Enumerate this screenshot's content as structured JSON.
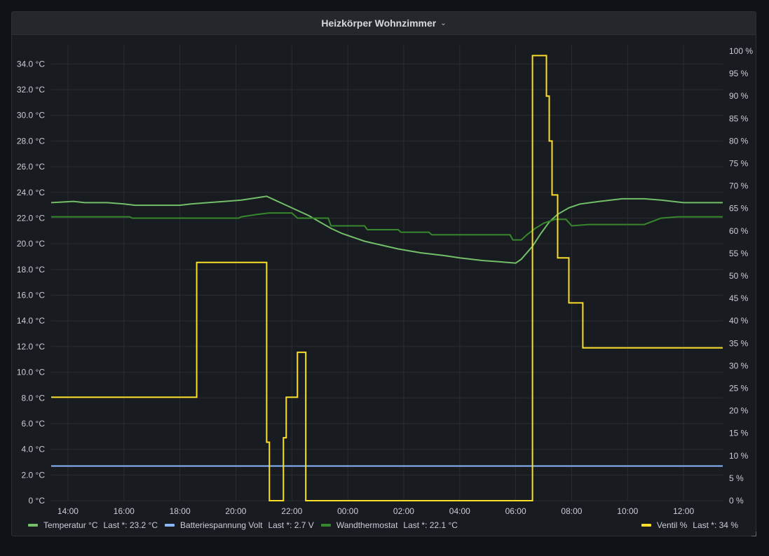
{
  "panel": {
    "title": "Heizkörper Wohnzimmer"
  },
  "chart_data": {
    "type": "line",
    "x_tick_labels": [
      "14:00",
      "16:00",
      "18:00",
      "20:00",
      "22:00",
      "00:00",
      "02:00",
      "04:00",
      "06:00",
      "08:00",
      "10:00",
      "12:00"
    ],
    "x_range_hours": [
      13.4,
      37.4
    ],
    "left_axis": {
      "unit": "°C",
      "ylim": [
        0,
        35
      ],
      "ticks": [
        "0 °C",
        "2.0 °C",
        "4.0 °C",
        "6.0 °C",
        "8.0 °C",
        "10.0 °C",
        "12.0 °C",
        "14.0 °C",
        "16.0 °C",
        "18.0 °C",
        "20.0 °C",
        "22.0 °C",
        "24.0 °C",
        "26.0 °C",
        "28.0 °C",
        "30.0 °C",
        "32.0 °C",
        "34.0 °C"
      ]
    },
    "right_axis": {
      "unit": "%",
      "ylim": [
        0,
        100
      ],
      "ticks": [
        "0 %",
        "5 %",
        "10 %",
        "15 %",
        "20 %",
        "25 %",
        "30 %",
        "35 %",
        "40 %",
        "45 %",
        "50 %",
        "55 %",
        "60 %",
        "65 %",
        "70 %",
        "75 %",
        "80 %",
        "85 %",
        "90 %",
        "95 %",
        "100 %"
      ]
    },
    "grid": true,
    "series": [
      {
        "name": "Temperatur °C",
        "axis": "left",
        "color": "#73bf69",
        "legend_stat": "Last *: 23.2 °C",
        "points": [
          [
            13.4,
            23.2
          ],
          [
            14.2,
            23.3
          ],
          [
            14.6,
            23.2
          ],
          [
            15.4,
            23.2
          ],
          [
            16.0,
            23.1
          ],
          [
            16.4,
            23.0
          ],
          [
            18.0,
            23.0
          ],
          [
            18.4,
            23.1
          ],
          [
            19.0,
            23.2
          ],
          [
            19.6,
            23.3
          ],
          [
            20.2,
            23.4
          ],
          [
            20.8,
            23.6
          ],
          [
            21.1,
            23.7
          ],
          [
            21.4,
            23.4
          ],
          [
            21.8,
            23.0
          ],
          [
            22.2,
            22.6
          ],
          [
            22.6,
            22.2
          ],
          [
            23.0,
            21.7
          ],
          [
            23.4,
            21.2
          ],
          [
            23.8,
            20.8
          ],
          [
            24.2,
            20.5
          ],
          [
            24.6,
            20.2
          ],
          [
            25.2,
            19.9
          ],
          [
            25.8,
            19.6
          ],
          [
            26.6,
            19.3
          ],
          [
            27.4,
            19.1
          ],
          [
            28.0,
            18.9
          ],
          [
            28.8,
            18.7
          ],
          [
            29.4,
            18.6
          ],
          [
            30.0,
            18.5
          ],
          [
            30.2,
            18.8
          ],
          [
            30.6,
            19.8
          ],
          [
            30.9,
            20.8
          ],
          [
            31.2,
            21.7
          ],
          [
            31.5,
            22.3
          ],
          [
            31.9,
            22.8
          ],
          [
            32.3,
            23.1
          ],
          [
            33.0,
            23.3
          ],
          [
            33.8,
            23.5
          ],
          [
            34.6,
            23.5
          ],
          [
            35.2,
            23.4
          ],
          [
            36.0,
            23.2
          ],
          [
            37.4,
            23.2
          ]
        ]
      },
      {
        "name": "Batteriespannung Volt",
        "axis": "left",
        "color": "#8ab8ff",
        "legend_stat": "Last *: 2.7 V",
        "points": [
          [
            13.4,
            2.7
          ],
          [
            37.4,
            2.7
          ]
        ]
      },
      {
        "name": "Wandthermostat",
        "axis": "left",
        "color": "#37872d",
        "legend_stat": "Last *: 22.1 °C",
        "points": [
          [
            13.4,
            22.1
          ],
          [
            16.2,
            22.1
          ],
          [
            16.3,
            22.0
          ],
          [
            20.1,
            22.0
          ],
          [
            20.2,
            22.1
          ],
          [
            20.8,
            22.3
          ],
          [
            21.2,
            22.4
          ],
          [
            22.0,
            22.4
          ],
          [
            22.2,
            22.0
          ],
          [
            23.3,
            22.0
          ],
          [
            23.4,
            21.4
          ],
          [
            24.6,
            21.4
          ],
          [
            24.7,
            21.1
          ],
          [
            25.8,
            21.1
          ],
          [
            25.9,
            20.9
          ],
          [
            26.9,
            20.9
          ],
          [
            27.0,
            20.7
          ],
          [
            29.8,
            20.7
          ],
          [
            29.9,
            20.3
          ],
          [
            30.2,
            20.3
          ],
          [
            30.4,
            20.7
          ],
          [
            30.7,
            21.2
          ],
          [
            31.0,
            21.6
          ],
          [
            31.4,
            21.9
          ],
          [
            31.8,
            21.9
          ],
          [
            32.0,
            21.4
          ],
          [
            32.6,
            21.5
          ],
          [
            34.6,
            21.5
          ],
          [
            35.2,
            22.0
          ],
          [
            35.8,
            22.1
          ],
          [
            37.4,
            22.1
          ]
        ]
      },
      {
        "name": "Ventil %",
        "axis": "right",
        "color": "#fade2a",
        "legend_stat": "Last *: 34 %",
        "points": [
          [
            13.4,
            23
          ],
          [
            18.6,
            23
          ],
          [
            18.6,
            53
          ],
          [
            21.1,
            53
          ],
          [
            21.1,
            13
          ],
          [
            21.2,
            13
          ],
          [
            21.2,
            0
          ],
          [
            21.7,
            0
          ],
          [
            21.7,
            14
          ],
          [
            21.8,
            14
          ],
          [
            21.8,
            23
          ],
          [
            22.2,
            23
          ],
          [
            22.2,
            33
          ],
          [
            22.5,
            33
          ],
          [
            22.5,
            0
          ],
          [
            30.6,
            0
          ],
          [
            30.6,
            99
          ],
          [
            31.1,
            99
          ],
          [
            31.1,
            90
          ],
          [
            31.2,
            90
          ],
          [
            31.2,
            80
          ],
          [
            31.3,
            80
          ],
          [
            31.3,
            68
          ],
          [
            31.5,
            68
          ],
          [
            31.5,
            54
          ],
          [
            31.9,
            54
          ],
          [
            31.9,
            44
          ],
          [
            32.4,
            44
          ],
          [
            32.4,
            34
          ],
          [
            37.4,
            34
          ]
        ]
      }
    ]
  }
}
